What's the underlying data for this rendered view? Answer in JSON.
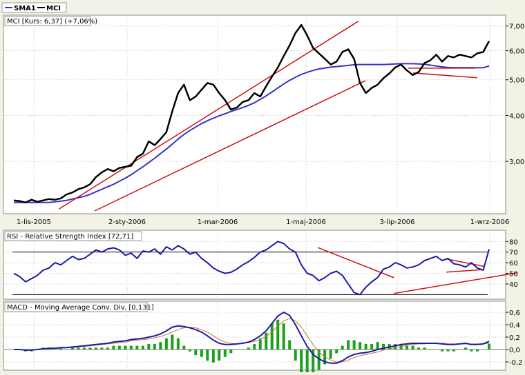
{
  "legend": {
    "items": [
      {
        "label": "SMA1",
        "color": "#3333cc"
      },
      {
        "label": "MCI",
        "color": "#000000"
      }
    ]
  },
  "panels": {
    "price_label": "MCI [Kurs: 6,37] (+7,06%)",
    "rsi_label": "RSI - Relative Strength Index [72,71]",
    "macd_label": "MACD - Moving Average Conv. Div. [0,131]"
  },
  "colors": {
    "price": "#000000",
    "sma": "#3333cc",
    "rsi": "#1a1aa8",
    "macd": "#1a1aa8",
    "signal": "#cc7722",
    "histogram": "#1aa01a",
    "trendline": "#cc1111",
    "background": "#f2f2e6",
    "panel_bg": "#ffffff"
  },
  "chart_data": [
    {
      "type": "line",
      "title": "MCI [Kurs: 6,37] (+7,06%)",
      "y_scale": "log",
      "ylim": [
        2.2,
        7.3
      ],
      "y_ticks": [
        "7,00",
        "6,00",
        "5,00",
        "4,00",
        "3,00"
      ],
      "y_tick_values": [
        7,
        6,
        5,
        4,
        3
      ],
      "x_ticks": [
        "1-lis-2005",
        "2-sty-2006",
        "1-mar-2006",
        "1-maj-2006",
        "3-lip-2006",
        "1-wrz-2006"
      ],
      "series": [
        {
          "name": "MCI",
          "values": [
            2.35,
            2.34,
            2.32,
            2.36,
            2.33,
            2.35,
            2.37,
            2.36,
            2.38,
            2.44,
            2.47,
            2.52,
            2.55,
            2.6,
            2.72,
            2.8,
            2.86,
            2.82,
            2.88,
            2.9,
            2.92,
            3.08,
            3.15,
            3.4,
            3.32,
            3.45,
            3.6,
            4.1,
            4.6,
            4.85,
            4.4,
            4.5,
            4.7,
            4.9,
            4.85,
            4.6,
            4.4,
            4.15,
            4.2,
            4.35,
            4.4,
            4.6,
            4.5,
            4.8,
            5.1,
            5.4,
            5.8,
            6.2,
            6.7,
            7.05,
            6.6,
            6.1,
            5.9,
            5.7,
            5.5,
            5.6,
            5.95,
            6.05,
            5.7,
            4.9,
            4.6,
            4.75,
            4.85,
            5.05,
            5.2,
            5.4,
            5.5,
            5.3,
            5.15,
            5.25,
            5.55,
            5.65,
            5.85,
            5.6,
            5.8,
            5.75,
            5.85,
            5.8,
            5.75,
            5.9,
            5.95,
            6.37
          ]
        },
        {
          "name": "SMA1",
          "values": [
            2.32,
            2.32,
            2.32,
            2.32,
            2.32,
            2.32,
            2.32,
            2.33,
            2.34,
            2.35,
            2.37,
            2.39,
            2.41,
            2.44,
            2.48,
            2.52,
            2.56,
            2.6,
            2.65,
            2.7,
            2.76,
            2.83,
            2.9,
            2.98,
            3.06,
            3.15,
            3.24,
            3.34,
            3.45,
            3.55,
            3.64,
            3.72,
            3.8,
            3.87,
            3.93,
            3.99,
            4.04,
            4.1,
            4.15,
            4.2,
            4.26,
            4.33,
            4.42,
            4.52,
            4.63,
            4.75,
            4.87,
            4.98,
            5.08,
            5.17,
            5.24,
            5.3,
            5.35,
            5.38,
            5.41,
            5.43,
            5.45,
            5.47,
            5.49,
            5.5,
            5.5,
            5.5,
            5.5,
            5.5,
            5.51,
            5.52,
            5.53,
            5.53,
            5.53,
            5.52,
            5.51,
            5.48,
            5.45,
            5.42,
            5.4,
            5.39,
            5.39,
            5.39,
            5.39,
            5.39,
            5.39,
            5.45
          ]
        }
      ],
      "trendlines": [
        [
          0.095,
          0.01,
          0.725,
          0.99
        ],
        [
          0.17,
          0.0,
          0.74,
          0.68
        ],
        [
          0.83,
          0.745,
          0.97,
          0.745
        ],
        [
          0.84,
          0.72,
          0.975,
          0.695
        ]
      ]
    },
    {
      "type": "line",
      "title": "RSI - Relative Strength Index [72,71]",
      "ylim": [
        27,
        86
      ],
      "y_ticks": [
        "80",
        "70",
        "60",
        "50",
        "40"
      ],
      "y_tick_values": [
        80,
        70,
        60,
        50,
        40
      ],
      "reference_lines": [
        70,
        30
      ],
      "series": [
        {
          "name": "RSI",
          "values": [
            50,
            47,
            42,
            45,
            48,
            53,
            55,
            60,
            58,
            62,
            66,
            63,
            64,
            68,
            72,
            70,
            73,
            74,
            72,
            67,
            69,
            64,
            71,
            70,
            73,
            68,
            75,
            72,
            76,
            73,
            68,
            70,
            64,
            60,
            55,
            52,
            50,
            51,
            54,
            58,
            61,
            65,
            70,
            72,
            76,
            80,
            78,
            73,
            70,
            58,
            50,
            48,
            43,
            46,
            50,
            52,
            48,
            40,
            32,
            30,
            37,
            42,
            46,
            54,
            56,
            60,
            58,
            55,
            56,
            58,
            62,
            64,
            66,
            62,
            64,
            59,
            58,
            56,
            60,
            55,
            53,
            72.71
          ]
        }
      ],
      "trendlines": [
        [
          0.64,
          0.8,
          0.8,
          0.32
        ],
        [
          0.8,
          0.07,
          1.06,
          0.4
        ],
        [
          0.91,
          0.62,
          0.99,
          0.5
        ],
        [
          0.91,
          0.41,
          0.99,
          0.45
        ]
      ]
    },
    {
      "type": "line",
      "title": "MACD - Moving Average Conv. Div. [0,131]",
      "ylim": [
        -0.3,
        0.7
      ],
      "y_ticks": [
        "0,6",
        "0,4",
        "0,2",
        "0,0",
        "-0,2"
      ],
      "y_tick_values": [
        0.6,
        0.4,
        0.2,
        0.0,
        -0.2
      ],
      "series": [
        {
          "name": "MACD",
          "values": [
            0.0,
            0.0,
            -0.01,
            -0.01,
            0.0,
            0.01,
            0.02,
            0.02,
            0.03,
            0.03,
            0.04,
            0.05,
            0.06,
            0.07,
            0.08,
            0.09,
            0.1,
            0.12,
            0.13,
            0.14,
            0.16,
            0.17,
            0.18,
            0.2,
            0.22,
            0.25,
            0.3,
            0.36,
            0.38,
            0.37,
            0.35,
            0.32,
            0.28,
            0.22,
            0.15,
            0.1,
            0.08,
            0.08,
            0.09,
            0.1,
            0.12,
            0.16,
            0.22,
            0.3,
            0.42,
            0.54,
            0.6,
            0.55,
            0.4,
            0.22,
            0.05,
            -0.08,
            -0.15,
            -0.2,
            -0.22,
            -0.22,
            -0.18,
            -0.12,
            -0.08,
            -0.06,
            -0.05,
            -0.03,
            0.0,
            0.02,
            0.04,
            0.06,
            0.08,
            0.09,
            0.1,
            0.1,
            0.1,
            0.1,
            0.1,
            0.09,
            0.08,
            0.08,
            0.09,
            0.1,
            0.08,
            0.08,
            0.09,
            0.131
          ]
        },
        {
          "name": "Signal",
          "values": [
            0.0,
            0.0,
            0.0,
            0.0,
            0.0,
            0.0,
            0.01,
            0.02,
            0.02,
            0.03,
            0.03,
            0.04,
            0.05,
            0.06,
            0.07,
            0.08,
            0.09,
            0.1,
            0.11,
            0.12,
            0.14,
            0.15,
            0.16,
            0.17,
            0.19,
            0.21,
            0.24,
            0.28,
            0.32,
            0.35,
            0.36,
            0.35,
            0.32,
            0.28,
            0.22,
            0.16,
            0.12,
            0.1,
            0.09,
            0.1,
            0.11,
            0.13,
            0.16,
            0.21,
            0.28,
            0.38,
            0.46,
            0.5,
            0.46,
            0.36,
            0.22,
            0.08,
            -0.04,
            -0.12,
            -0.17,
            -0.2,
            -0.2,
            -0.17,
            -0.13,
            -0.1,
            -0.08,
            -0.06,
            -0.04,
            -0.01,
            0.01,
            0.03,
            0.05,
            0.07,
            0.08,
            0.09,
            0.09,
            0.1,
            0.1,
            0.1,
            0.09,
            0.09,
            0.09,
            0.09,
            0.09,
            0.09,
            0.09,
            0.1
          ]
        }
      ]
    }
  ]
}
